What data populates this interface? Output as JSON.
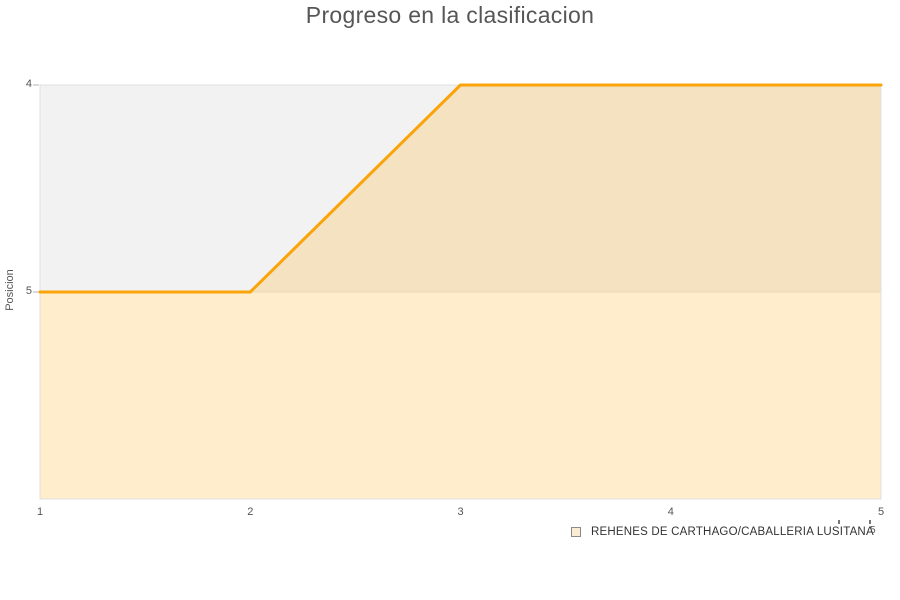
{
  "title": "Progreso en la clasificacion",
  "chart_data": {
    "type": "line",
    "title": "Progreso en la clasificacion",
    "x": [
      1,
      2,
      3,
      4,
      5
    ],
    "x_ticks": [
      1,
      2,
      3,
      4,
      5
    ],
    "series": [
      {
        "name": "REHENES DE CARTHAGO/CABALLERIA LUSITANA",
        "values": [
          5,
          5,
          4,
          4,
          4
        ]
      }
    ],
    "xlabel": "",
    "ylabel": "Posicion",
    "ylim": [
      4,
      6
    ],
    "y_inverted": true,
    "y_ticks": [
      4,
      5
    ],
    "grid": true,
    "area_fill": true,
    "legend_position": "bottom-right",
    "colors": {
      "line": "#faa40a",
      "fill": "#ffa500",
      "fill_opacity": 0.2,
      "alternate_band": "#f2f2f2",
      "plot_border": "#e0e0e0",
      "gridline": "#e6e6e6",
      "tick": "#b3b3b3",
      "title_text": "#565656",
      "axis_text": "#555555",
      "legend_text": "#333333"
    }
  },
  "legend": {
    "items": [
      {
        "label": "REHENES DE CARTHAGO/CABALLERIA LUSITANA",
        "marker_fill": "#f9ecd2",
        "marker_border": "#8a8a8a"
      }
    ]
  },
  "decorations": {
    "mini_axis_label": "5"
  }
}
